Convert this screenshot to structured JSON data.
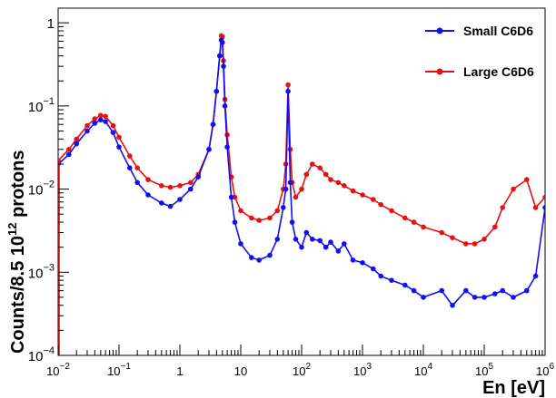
{
  "chart_data": {
    "type": "line",
    "title": "",
    "xlabel": "En [eV]",
    "ylabel_main": "Counts/8.5 10",
    "ylabel_sup": "12",
    "ylabel_tail": " protons",
    "xscale": "log",
    "yscale": "log",
    "xlim": [
      0.01,
      1000000
    ],
    "ylim": [
      0.0001,
      1.5
    ],
    "grid": false,
    "legend_position": "top-right",
    "x_tick_labels": [
      {
        "base": "10",
        "exp": "−2"
      },
      {
        "base": "10",
        "exp": "−1"
      },
      {
        "base": "1",
        "exp": ""
      },
      {
        "base": "10",
        "exp": ""
      },
      {
        "base": "10",
        "exp": "2"
      },
      {
        "base": "10",
        "exp": "3"
      },
      {
        "base": "10",
        "exp": "4"
      },
      {
        "base": "10",
        "exp": "5"
      },
      {
        "base": "10",
        "exp": "6"
      }
    ],
    "y_tick_labels": [
      {
        "base": "1",
        "exp": ""
      },
      {
        "base": "10",
        "exp": "−1"
      },
      {
        "base": "10",
        "exp": "−2"
      },
      {
        "base": "10",
        "exp": "−3"
      },
      {
        "base": "10",
        "exp": "−4"
      }
    ],
    "series": [
      {
        "name": "Small C6D6",
        "color": "#1010f0",
        "x": [
          0.01,
          0.015,
          0.02,
          0.03,
          0.04,
          0.05,
          0.06,
          0.08,
          0.1,
          0.15,
          0.2,
          0.3,
          0.5,
          0.7,
          1.0,
          1.5,
          2.0,
          3.0,
          3.5,
          4.0,
          4.5,
          4.8,
          5.0,
          5.2,
          5.5,
          6.0,
          7.0,
          8.0,
          10.0,
          15.0,
          20.0,
          30.0,
          40.0,
          50.0,
          55.0,
          60.0,
          65.0,
          70.0,
          80.0,
          100.0,
          120.0,
          150.0,
          200.0,
          250.0,
          300.0,
          400.0,
          500.0,
          700.0,
          1000.0,
          1500.0,
          2000.0,
          3000.0,
          5000.0,
          7000.0,
          10000.0,
          20000.0,
          30000.0,
          50000.0,
          70000.0,
          100000.0,
          150000.0,
          200000.0,
          300000.0,
          500000.0,
          700000.0,
          1000000.0
        ],
        "values": [
          0.02,
          0.026,
          0.035,
          0.05,
          0.062,
          0.068,
          0.065,
          0.048,
          0.032,
          0.018,
          0.012,
          0.0085,
          0.0068,
          0.0062,
          0.0075,
          0.01,
          0.014,
          0.03,
          0.06,
          0.15,
          0.4,
          0.62,
          0.58,
          0.3,
          0.1,
          0.032,
          0.008,
          0.004,
          0.0022,
          0.0015,
          0.0014,
          0.0016,
          0.0025,
          0.006,
          0.01,
          0.15,
          0.012,
          0.004,
          0.0025,
          0.002,
          0.003,
          0.0025,
          0.0024,
          0.002,
          0.0023,
          0.0018,
          0.0022,
          0.0014,
          0.0013,
          0.0011,
          0.0009,
          0.0008,
          0.0007,
          0.0006,
          0.0005,
          0.0006,
          0.0004,
          0.0006,
          0.0005,
          0.0005,
          0.00055,
          0.0006,
          0.0005,
          0.0006,
          0.0009,
          0.006
        ]
      },
      {
        "name": "Large C6D6",
        "color": "#e81010",
        "x": [
          0.01,
          0.015,
          0.02,
          0.03,
          0.04,
          0.05,
          0.06,
          0.08,
          0.1,
          0.15,
          0.2,
          0.3,
          0.5,
          0.7,
          1.0,
          1.5,
          2.0,
          3.0,
          3.5,
          4.0,
          4.5,
          4.8,
          5.0,
          5.2,
          5.5,
          6.0,
          7.0,
          8.0,
          10.0,
          15.0,
          20.0,
          30.0,
          40.0,
          50.0,
          55.0,
          60.0,
          65.0,
          70.0,
          80.0,
          100.0,
          120.0,
          150.0,
          200.0,
          250.0,
          300.0,
          400.0,
          500.0,
          700.0,
          1000.0,
          1500.0,
          2000.0,
          3000.0,
          5000.0,
          7000.0,
          10000.0,
          20000.0,
          30000.0,
          50000.0,
          70000.0,
          100000.0,
          150000.0,
          200000.0,
          300000.0,
          500000.0,
          700000.0,
          1000000.0
        ],
        "values": [
          0.022,
          0.03,
          0.04,
          0.058,
          0.07,
          0.077,
          0.075,
          0.058,
          0.042,
          0.025,
          0.018,
          0.013,
          0.011,
          0.0105,
          0.011,
          0.012,
          0.015,
          0.03,
          0.06,
          0.15,
          0.4,
          0.7,
          0.68,
          0.35,
          0.12,
          0.045,
          0.014,
          0.008,
          0.0055,
          0.0045,
          0.0042,
          0.0045,
          0.0055,
          0.01,
          0.02,
          0.18,
          0.03,
          0.012,
          0.008,
          0.01,
          0.015,
          0.02,
          0.018,
          0.015,
          0.013,
          0.012,
          0.011,
          0.0095,
          0.0085,
          0.0075,
          0.0065,
          0.0055,
          0.0045,
          0.004,
          0.0035,
          0.003,
          0.0026,
          0.0022,
          0.0022,
          0.0025,
          0.0035,
          0.006,
          0.01,
          0.013,
          0.006,
          0.008
        ]
      }
    ]
  }
}
